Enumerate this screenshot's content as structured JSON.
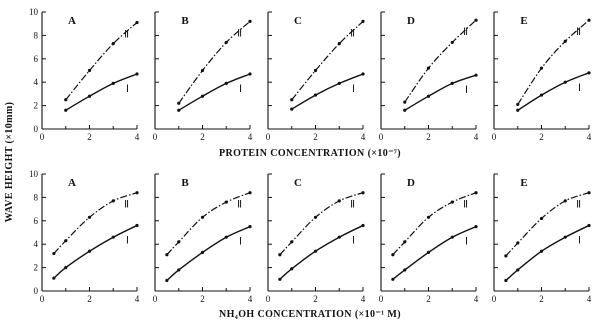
{
  "colors": {
    "ink": "#111111",
    "background": "#ffffff"
  },
  "ylabel": "WAVE HEIGHT (×10mm)",
  "row_xlabels": [
    "PROTEIN CONCENTRATION (×10⁻⁷)",
    "NH₄OH CONCENTRATION (×10⁻¹ M)"
  ],
  "chart_data": [
    {
      "type": "line",
      "row": 0,
      "panel": "A",
      "xlim": [
        0,
        4
      ],
      "ylim": [
        0,
        10
      ],
      "xticks": [
        0,
        2,
        4
      ],
      "yticks": [
        0,
        2,
        4,
        6,
        8,
        10
      ],
      "minor_xticks": [
        1,
        3
      ],
      "series": [
        {
          "name": "Ⅱ",
          "style": "dash-dot",
          "x": [
            1,
            2,
            3,
            4
          ],
          "y": [
            2.5,
            5.0,
            7.3,
            9.1
          ]
        },
        {
          "name": "Ⅰ",
          "style": "solid",
          "x": [
            1,
            2,
            3,
            4
          ],
          "y": [
            1.6,
            2.8,
            3.9,
            4.7
          ]
        }
      ]
    },
    {
      "type": "line",
      "row": 0,
      "panel": "B",
      "xlim": [
        0,
        4
      ],
      "ylim": [
        0,
        10
      ],
      "xticks": [
        0,
        2,
        4
      ],
      "yticks": [
        0,
        2,
        4,
        6,
        8,
        10
      ],
      "minor_xticks": [
        1,
        3
      ],
      "series": [
        {
          "name": "Ⅱ",
          "style": "dash-dot",
          "x": [
            1,
            2,
            3,
            4
          ],
          "y": [
            2.2,
            5.0,
            7.4,
            9.2
          ]
        },
        {
          "name": "Ⅰ",
          "style": "solid",
          "x": [
            1,
            2,
            3,
            4
          ],
          "y": [
            1.6,
            2.8,
            3.9,
            4.7
          ]
        }
      ]
    },
    {
      "type": "line",
      "row": 0,
      "panel": "C",
      "xlim": [
        0,
        4
      ],
      "ylim": [
        0,
        10
      ],
      "xticks": [
        0,
        2,
        4
      ],
      "yticks": [
        0,
        2,
        4,
        6,
        8,
        10
      ],
      "minor_xticks": [
        1,
        3
      ],
      "series": [
        {
          "name": "Ⅱ",
          "style": "dash-dot",
          "x": [
            1,
            2,
            3,
            4
          ],
          "y": [
            2.5,
            5.0,
            7.3,
            9.2
          ]
        },
        {
          "name": "Ⅰ",
          "style": "solid",
          "x": [
            1,
            2,
            3,
            4
          ],
          "y": [
            1.7,
            2.9,
            3.9,
            4.7
          ]
        }
      ]
    },
    {
      "type": "line",
      "row": 0,
      "panel": "D",
      "xlim": [
        0,
        4
      ],
      "ylim": [
        0,
        10
      ],
      "xticks": [
        0,
        2,
        4
      ],
      "yticks": [
        0,
        2,
        4,
        6,
        8,
        10
      ],
      "minor_xticks": [
        1,
        3
      ],
      "series": [
        {
          "name": "Ⅱ",
          "style": "dash-dot",
          "x": [
            1,
            2,
            3,
            4
          ],
          "y": [
            2.3,
            5.2,
            7.4,
            9.3
          ]
        },
        {
          "name": "Ⅰ",
          "style": "solid",
          "x": [
            1,
            2,
            3,
            4
          ],
          "y": [
            1.6,
            2.8,
            3.9,
            4.6
          ]
        }
      ]
    },
    {
      "type": "line",
      "row": 0,
      "panel": "E",
      "xlim": [
        0,
        4
      ],
      "ylim": [
        0,
        10
      ],
      "xticks": [
        0,
        2,
        4
      ],
      "yticks": [
        0,
        2,
        4,
        6,
        8,
        10
      ],
      "minor_xticks": [
        1,
        3
      ],
      "series": [
        {
          "name": "Ⅱ",
          "style": "dash-dot",
          "x": [
            1,
            2,
            3,
            4
          ],
          "y": [
            2.1,
            5.2,
            7.5,
            9.3
          ]
        },
        {
          "name": "Ⅰ",
          "style": "solid",
          "x": [
            1,
            2,
            3,
            4
          ],
          "y": [
            1.6,
            2.9,
            4.0,
            4.8
          ]
        }
      ]
    },
    {
      "type": "line",
      "row": 1,
      "panel": "A",
      "xlim": [
        0,
        4
      ],
      "ylim": [
        0,
        10
      ],
      "xticks": [
        0,
        2,
        4
      ],
      "yticks": [
        0,
        2,
        4,
        6,
        8,
        10
      ],
      "minor_xticks": [
        1,
        3
      ],
      "series": [
        {
          "name": "Ⅱ",
          "style": "dash-dot",
          "x": [
            0.5,
            1,
            2,
            3,
            4
          ],
          "y": [
            3.2,
            4.3,
            6.3,
            7.7,
            8.4
          ]
        },
        {
          "name": "Ⅰ",
          "style": "solid",
          "x": [
            0.5,
            1,
            2,
            3,
            4
          ],
          "y": [
            1.1,
            2.0,
            3.4,
            4.6,
            5.6
          ]
        }
      ]
    },
    {
      "type": "line",
      "row": 1,
      "panel": "B",
      "xlim": [
        0,
        4
      ],
      "ylim": [
        0,
        10
      ],
      "xticks": [
        0,
        2,
        4
      ],
      "yticks": [
        0,
        2,
        4,
        6,
        8,
        10
      ],
      "minor_xticks": [
        1,
        3
      ],
      "series": [
        {
          "name": "Ⅱ",
          "style": "dash-dot",
          "x": [
            0.5,
            1,
            2,
            3,
            4
          ],
          "y": [
            3.1,
            4.2,
            6.3,
            7.6,
            8.4
          ]
        },
        {
          "name": "Ⅰ",
          "style": "solid",
          "x": [
            0.5,
            1,
            2,
            3,
            4
          ],
          "y": [
            0.9,
            1.8,
            3.3,
            4.6,
            5.5
          ]
        }
      ]
    },
    {
      "type": "line",
      "row": 1,
      "panel": "C",
      "xlim": [
        0,
        4
      ],
      "ylim": [
        0,
        10
      ],
      "xticks": [
        0,
        2,
        4
      ],
      "yticks": [
        0,
        2,
        4,
        6,
        8,
        10
      ],
      "minor_xticks": [
        1,
        3
      ],
      "series": [
        {
          "name": "Ⅱ",
          "style": "dash-dot",
          "x": [
            0.5,
            1,
            2,
            3,
            4
          ],
          "y": [
            3.1,
            4.2,
            6.3,
            7.7,
            8.4
          ]
        },
        {
          "name": "Ⅰ",
          "style": "solid",
          "x": [
            0.5,
            1,
            2,
            3,
            4
          ],
          "y": [
            1.0,
            1.9,
            3.4,
            4.6,
            5.6
          ]
        }
      ]
    },
    {
      "type": "line",
      "row": 1,
      "panel": "D",
      "xlim": [
        0,
        4
      ],
      "ylim": [
        0,
        10
      ],
      "xticks": [
        0,
        2,
        4
      ],
      "yticks": [
        0,
        2,
        4,
        6,
        8,
        10
      ],
      "minor_xticks": [
        1,
        3
      ],
      "series": [
        {
          "name": "Ⅱ",
          "style": "dash-dot",
          "x": [
            0.5,
            1,
            2,
            3,
            4
          ],
          "y": [
            3.1,
            4.2,
            6.3,
            7.6,
            8.4
          ]
        },
        {
          "name": "Ⅰ",
          "style": "solid",
          "x": [
            0.5,
            1,
            2,
            3,
            4
          ],
          "y": [
            1.0,
            1.8,
            3.3,
            4.6,
            5.5
          ]
        }
      ]
    },
    {
      "type": "line",
      "row": 1,
      "panel": "E",
      "xlim": [
        0,
        4
      ],
      "ylim": [
        0,
        10
      ],
      "xticks": [
        0,
        2,
        4
      ],
      "yticks": [
        0,
        2,
        4,
        6,
        8,
        10
      ],
      "minor_xticks": [
        1,
        3
      ],
      "series": [
        {
          "name": "Ⅱ",
          "style": "dash-dot",
          "x": [
            0.5,
            1,
            2,
            3,
            4
          ],
          "y": [
            3.0,
            4.1,
            6.2,
            7.7,
            8.4
          ]
        },
        {
          "name": "Ⅰ",
          "style": "solid",
          "x": [
            0.5,
            1,
            2,
            3,
            4
          ],
          "y": [
            0.9,
            1.8,
            3.4,
            4.6,
            5.6
          ]
        }
      ]
    }
  ]
}
